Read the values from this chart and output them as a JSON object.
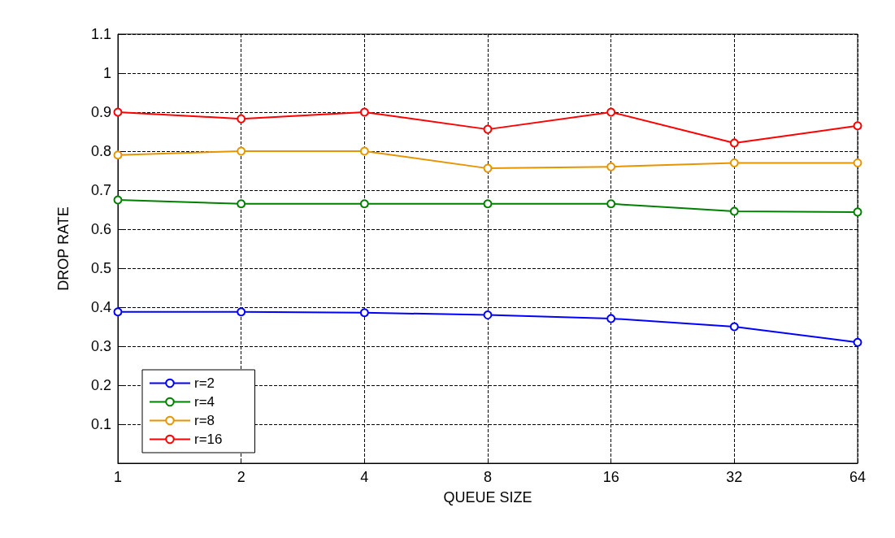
{
  "chart_data": {
    "type": "line",
    "xlabel": "QUEUE SIZE",
    "ylabel": "DROP RATE",
    "categories": [
      "1",
      "2",
      "4",
      "8",
      "16",
      "32",
      "64"
    ],
    "ylim": [
      0,
      1.1
    ],
    "yticks": [
      {
        "value": 0,
        "label": null
      },
      0.1,
      0.2,
      0.3,
      0.4,
      0.5,
      0.6,
      0.7,
      0.8,
      0.9,
      1,
      1.1
    ],
    "grid": true,
    "legend": "bottom left",
    "marker": "circle",
    "line_style": "solid",
    "series": [
      {
        "name": "r=2",
        "color": "#0000ff",
        "values": [
          0.388,
          0.388,
          0.386,
          0.38,
          0.371,
          0.35,
          0.31
        ]
      },
      {
        "name": "r=4",
        "color": "#008000",
        "values": [
          0.675,
          0.665,
          0.665,
          0.665,
          0.665,
          0.646,
          0.644
        ]
      },
      {
        "name": "r=8",
        "color": "#e69500",
        "values": [
          0.79,
          0.8,
          0.8,
          0.756,
          0.76,
          0.77,
          0.77
        ]
      },
      {
        "name": "r=16",
        "color": "#ff0000",
        "values": [
          0.9,
          0.883,
          0.9,
          0.856,
          0.9,
          0.821,
          0.865
        ]
      }
    ]
  }
}
